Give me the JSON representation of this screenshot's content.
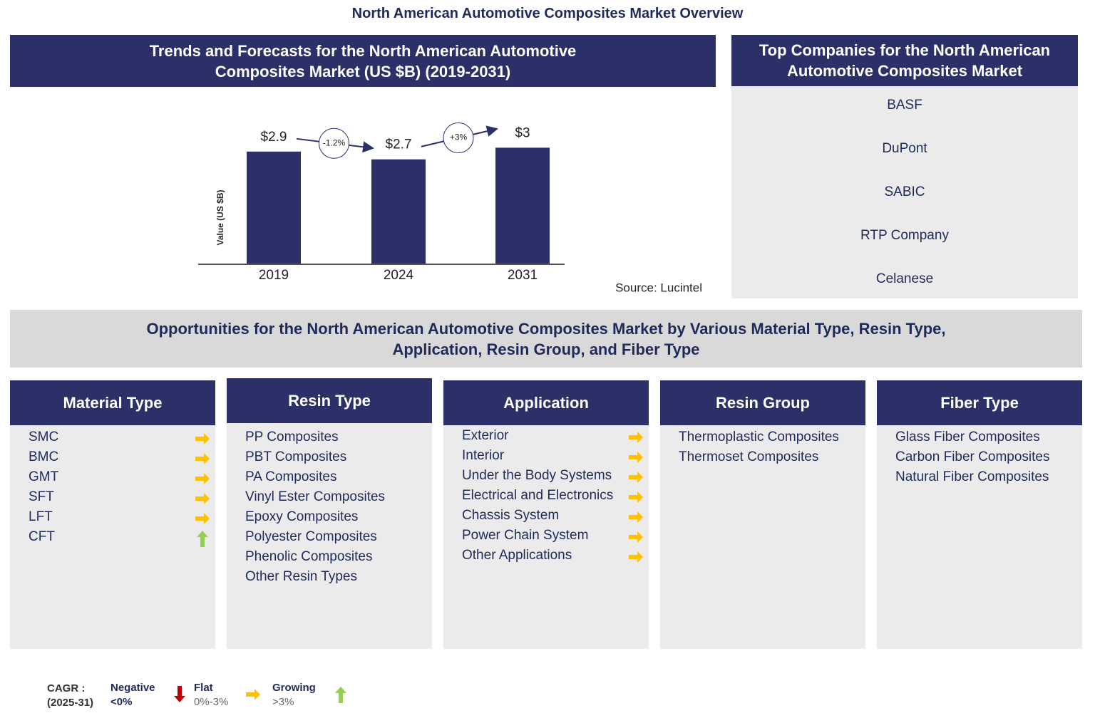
{
  "title": "North American Automotive Composites Market Overview",
  "chart_data": {
    "type": "bar",
    "title": "Trends and Forecasts for the North American Automotive Composites Market (US $B) (2019-2031)",
    "y_label": "Value (US $B)",
    "categories": [
      "2019",
      "2024",
      "2031"
    ],
    "values": [
      2.9,
      2.7,
      3
    ],
    "value_labels": [
      "$2.9",
      "$2.7",
      "$3"
    ],
    "color": "#2b3068",
    "ylim": [
      0,
      3.3
    ],
    "annotations": [
      "-1.2%",
      "+3%"
    ],
    "source": "Source: Lucintel"
  },
  "companies": {
    "title": "Top Companies for the North American Automotive Composites Market",
    "items": [
      "BASF",
      "DuPont",
      "SABIC",
      "RTP Company",
      "Celanese"
    ]
  },
  "opportunities": {
    "title": "Opportunities for the North American Automotive Composites Market by Various Material Type, Resin Type, Application, Resin Group, and Fiber Type",
    "segments": [
      {
        "title": "Material Type",
        "items": [
          {
            "label": "SMC",
            "trend": "flat"
          },
          {
            "label": "BMC",
            "trend": "flat"
          },
          {
            "label": "GMT",
            "trend": "flat"
          },
          {
            "label": "SFT",
            "trend": "flat"
          },
          {
            "label": "LFT",
            "trend": "flat"
          },
          {
            "label": "CFT",
            "trend": "growing"
          }
        ]
      },
      {
        "title": "Resin Type",
        "items": [
          {
            "label": "PP Composites"
          },
          {
            "label": "PBT Composites"
          },
          {
            "label": "PA Composites"
          },
          {
            "label": "Vinyl Ester Composites"
          },
          {
            "label": "Epoxy Composites"
          },
          {
            "label": "Polyester Composites"
          },
          {
            "label": "Phenolic Composites"
          },
          {
            "label": "Other Resin Types"
          }
        ]
      },
      {
        "title": "Application",
        "items": [
          {
            "label": "Exterior",
            "trend": "flat"
          },
          {
            "label": "Interior",
            "trend": "flat"
          },
          {
            "label": "Under the Body Systems",
            "trend": "flat"
          },
          {
            "label": "Electrical and Electronics",
            "trend": "flat"
          },
          {
            "label": "Chassis System",
            "trend": "flat"
          },
          {
            "label": "Power Chain System",
            "trend": "flat"
          },
          {
            "label": "Other Applications",
            "trend": "flat"
          }
        ]
      },
      {
        "title": "Resin Group",
        "items": [
          {
            "label": "Thermoplastic Composites"
          },
          {
            "label": "Thermoset Composites"
          }
        ]
      },
      {
        "title": "Fiber Type",
        "items": [
          {
            "label": "Glass Fiber Composites"
          },
          {
            "label": "Carbon Fiber Composites"
          },
          {
            "label": "Natural Fiber Composites"
          }
        ]
      }
    ]
  },
  "legend": {
    "title": "CAGR :",
    "period": "(2025-31)",
    "entries": [
      {
        "label": "Negative",
        "range": "<0%",
        "trend": "negative"
      },
      {
        "label": "Flat",
        "range": "0%-3%",
        "trend": "flat"
      },
      {
        "label": "Growing",
        "range": ">3%",
        "trend": "growing"
      }
    ]
  }
}
